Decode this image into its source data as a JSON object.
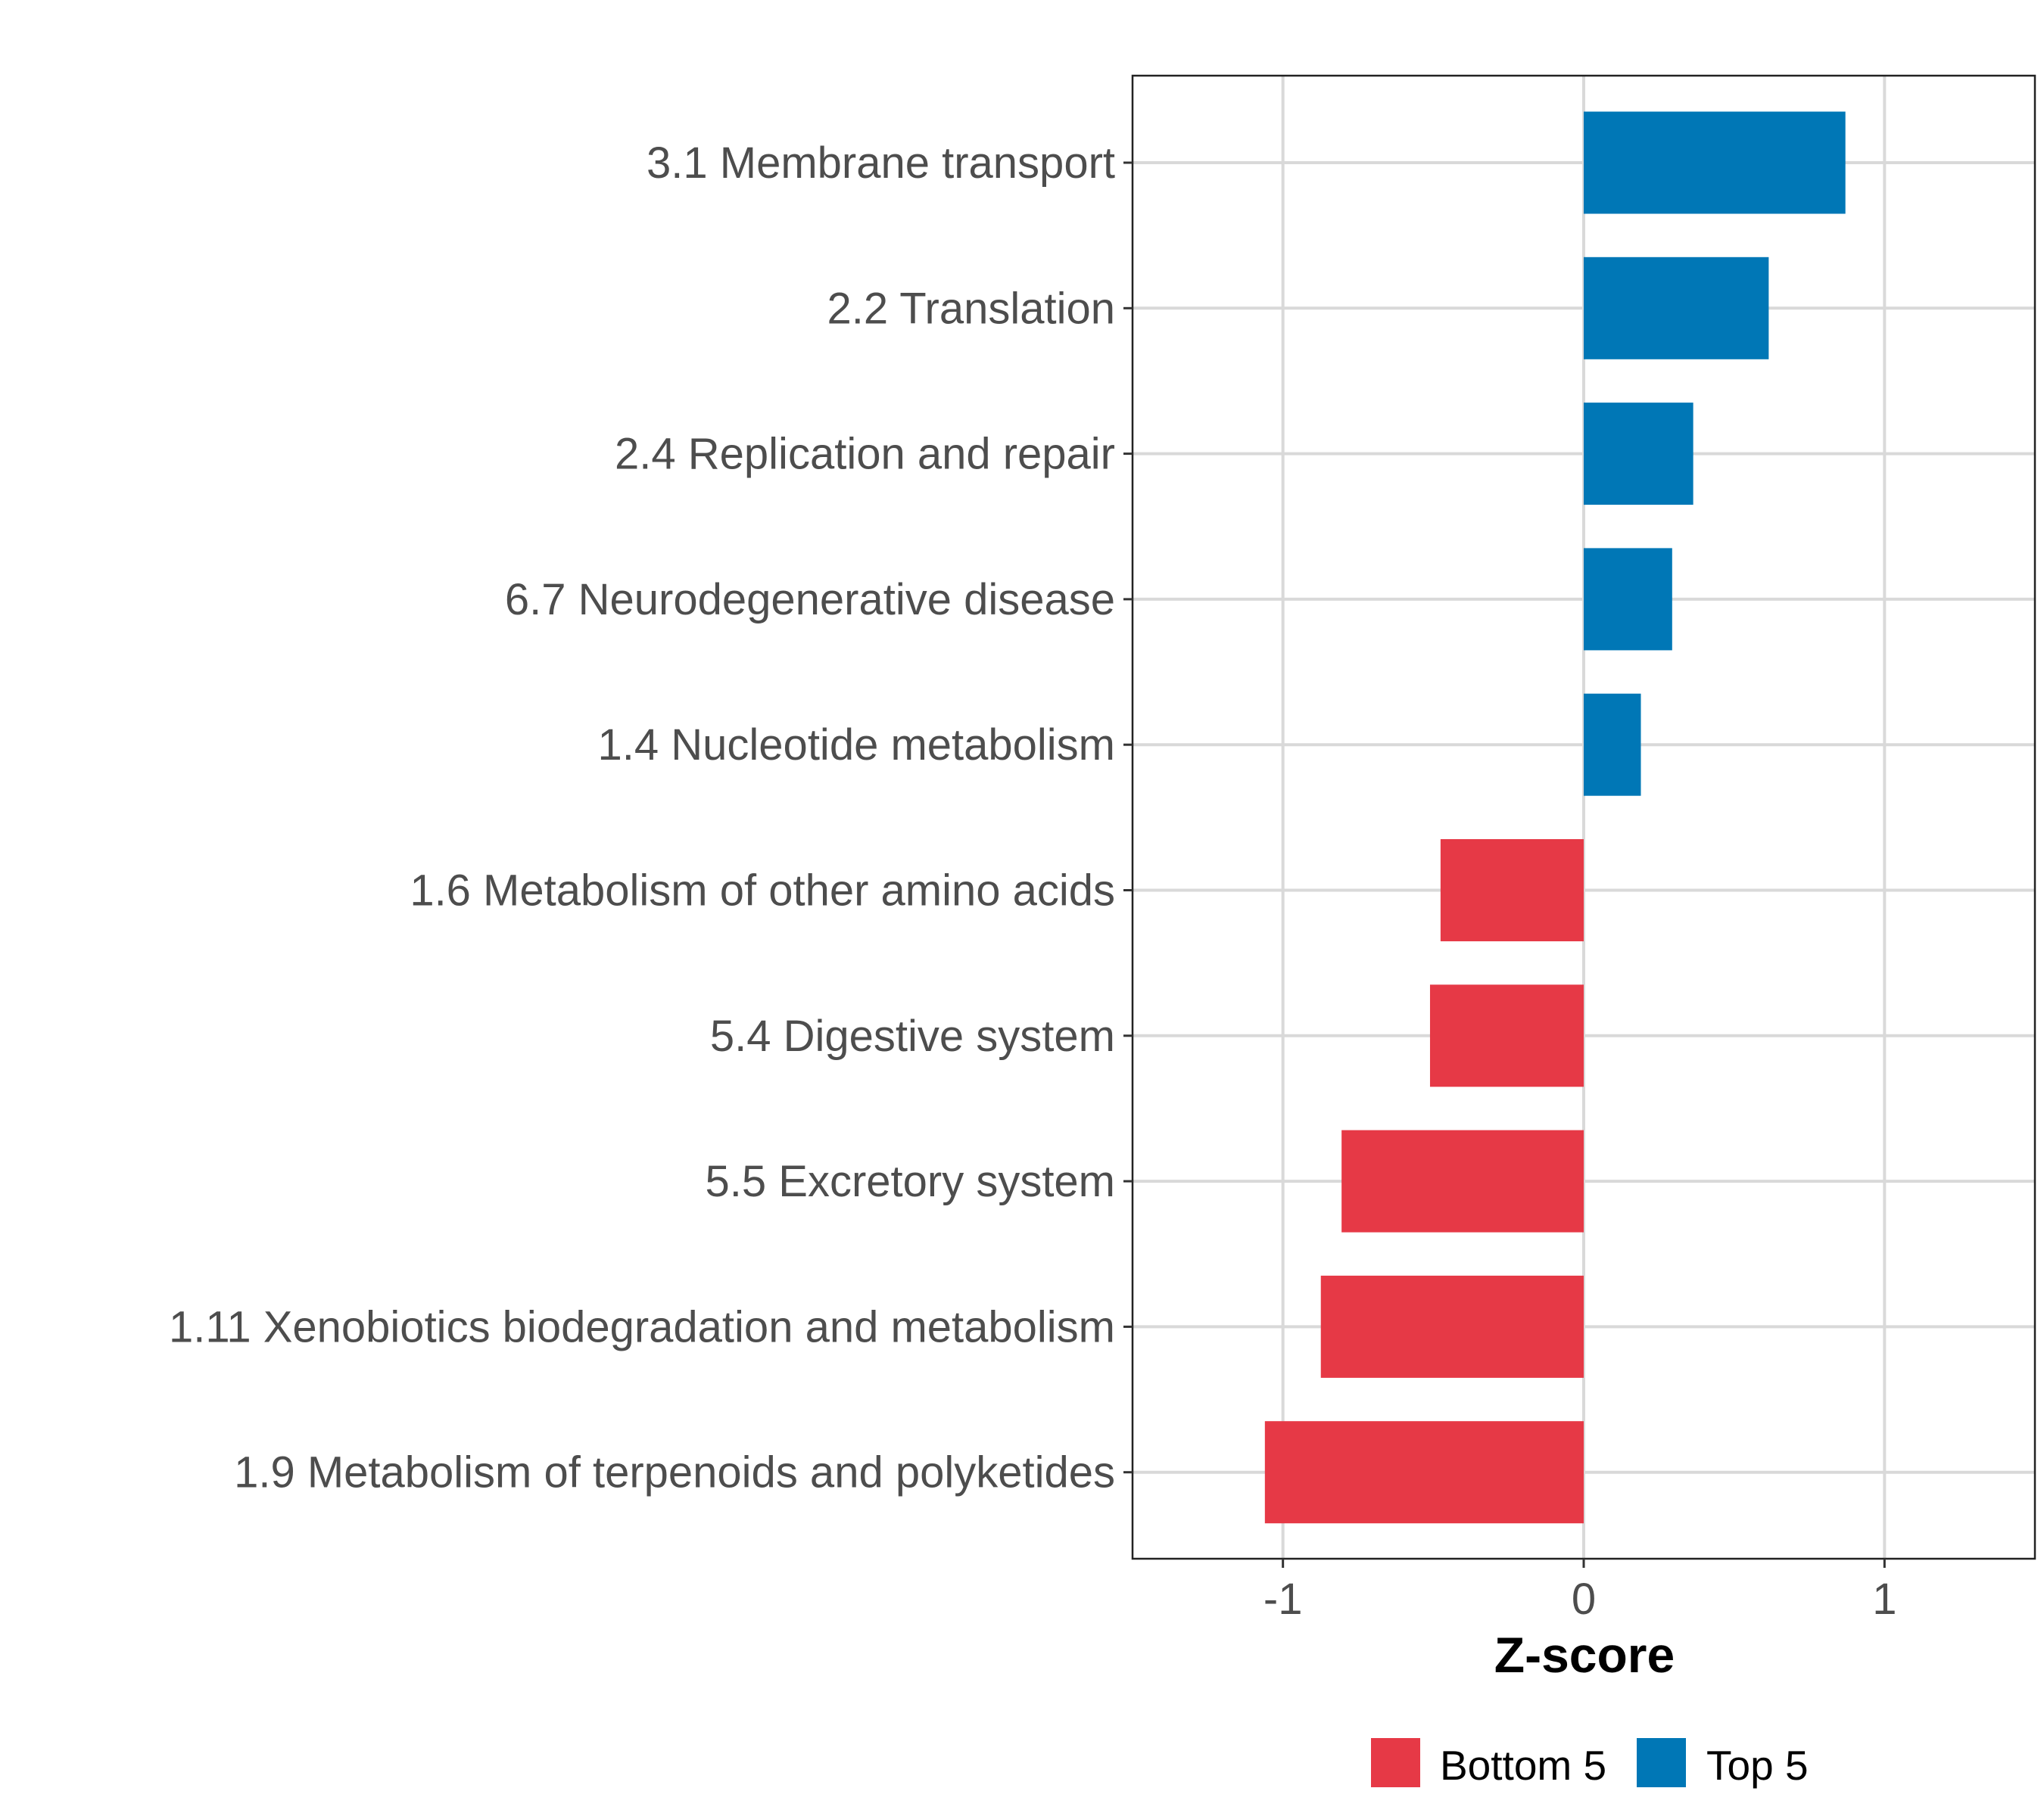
{
  "chart_data": {
    "type": "bar",
    "orientation": "horizontal",
    "title": "",
    "xlabel": "Z-score",
    "ylabel": "",
    "xlim": [
      -1.5,
      1.5
    ],
    "xticks": [
      -1,
      0,
      1
    ],
    "xtick_labels": [
      "-1",
      "0",
      "1"
    ],
    "grid": true,
    "legend_position": "bottom",
    "categories": [
      "3.1 Membrane transport",
      "2.2 Translation",
      "2.4 Replication and repair",
      "6.7 Neurodegenerative disease",
      "1.4 Nucleotide metabolism",
      "1.6 Metabolism of other amino acids",
      "5.4 Digestive system",
      "5.5 Excretory system",
      "1.11 Xenobiotics biodegradation and metabolism",
      "1.9 Metabolism of terpenoids and polyketides"
    ],
    "values": [
      0.87,
      0.615,
      0.364,
      0.294,
      0.19,
      -0.476,
      -0.511,
      -0.805,
      -0.874,
      -1.06
    ],
    "groups": [
      "Top 5",
      "Top 5",
      "Top 5",
      "Top 5",
      "Top 5",
      "Bottom 5",
      "Bottom 5",
      "Bottom 5",
      "Bottom 5",
      "Bottom 5"
    ],
    "legend": [
      {
        "label": "Bottom 5",
        "color": "#E63946"
      },
      {
        "label": "Top 5",
        "color": "#0077B6"
      }
    ]
  }
}
